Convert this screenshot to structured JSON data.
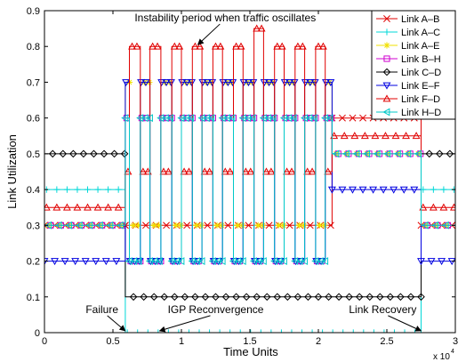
{
  "chart_data": {
    "type": "line",
    "xlabel": "Time Units",
    "ylabel": "Link Utilization",
    "x_multiplier": "x 10",
    "x_multiplier_exp": "4",
    "xlim": [
      0,
      30000
    ],
    "ylim": [
      0,
      0.9
    ],
    "xticks": [
      0,
      5000,
      10000,
      15000,
      20000,
      25000,
      30000
    ],
    "xtick_labels": [
      "0",
      "0.5",
      "1",
      "1.5",
      "2",
      "2.5",
      "3"
    ],
    "yticks": [
      0,
      0.1,
      0.2,
      0.3,
      0.4,
      0.5,
      0.6,
      0.7,
      0.8,
      0.9
    ],
    "ytick_labels": [
      "0",
      "0.1",
      "0.2",
      "0.3",
      "0.4",
      "0.5",
      "0.6",
      "0.7",
      "0.8",
      "0.9"
    ],
    "grid": false,
    "legend_position": "top-right",
    "annotations": [
      {
        "text": "Instability period when traffic oscillates",
        "x": 13200,
        "y": 0.87,
        "arrow_to": [
          11200,
          0.805
        ]
      },
      {
        "text": "Failure",
        "x": 4200,
        "y": 0.055,
        "arrow_to": [
          5900,
          0.005
        ]
      },
      {
        "text": "IGP Reconvergence",
        "x": 12500,
        "y": 0.055,
        "arrow_to": [
          8400,
          0.005
        ]
      },
      {
        "text": "Link Recovery",
        "x": 24700,
        "y": 0.055,
        "arrow_to": [
          27500,
          0.005
        ]
      }
    ],
    "series": [
      {
        "name": "Link A–B",
        "color": "#e00000",
        "marker": "x",
        "x": [
          0,
          5900,
          5900,
          21000,
          21000,
          27500,
          27500,
          30000
        ],
        "y": [
          0.3,
          0.3,
          0.3,
          0.3,
          0.6,
          0.6,
          0.3,
          0.3
        ]
      },
      {
        "name": "Link A–C",
        "color": "#00d8d8",
        "marker": "+",
        "x": [
          0,
          5900,
          5900,
          27500,
          27500,
          30000
        ],
        "y": [
          0.4,
          0.4,
          0,
          0,
          0.4,
          0.4
        ]
      },
      {
        "name": "Link A–E",
        "color": "#f0e000",
        "marker": "*",
        "x": [
          0,
          5900,
          5900,
          6200,
          6200,
          7000,
          7000,
          7700,
          7700,
          8500,
          8500,
          9300,
          9300,
          10000,
          10000,
          10800,
          10800,
          11500,
          11500,
          12300,
          12300,
          13000,
          13000,
          13800,
          13800,
          14500,
          14500,
          15300,
          15300,
          16000,
          16000,
          16800,
          16800,
          17500,
          17500,
          18300,
          18300,
          19000,
          19000,
          19800,
          19800,
          20500,
          20500,
          21000,
          21000,
          27500,
          27500,
          30000
        ],
        "y": [
          0.3,
          0.3,
          0.7,
          0.7,
          0.3,
          0.3,
          0.7,
          0.7,
          0.3,
          0.3,
          0.7,
          0.7,
          0.3,
          0.3,
          0.7,
          0.7,
          0.3,
          0.3,
          0.7,
          0.7,
          0.3,
          0.3,
          0.7,
          0.7,
          0.3,
          0.3,
          0.7,
          0.7,
          0.3,
          0.3,
          0.7,
          0.7,
          0.3,
          0.3,
          0.7,
          0.7,
          0.3,
          0.3,
          0.7,
          0.7,
          0.3,
          0.3,
          0.7,
          0.7,
          0.5,
          0.5,
          0.3,
          0.3
        ]
      },
      {
        "name": "Link B–H",
        "color": "#d000d0",
        "marker": "square",
        "x": [
          0,
          5900,
          5900,
          6200,
          6200,
          7000,
          7000,
          7700,
          7700,
          8500,
          8500,
          9300,
          9300,
          10000,
          10000,
          10800,
          10800,
          11500,
          11500,
          12300,
          12300,
          13000,
          13000,
          13800,
          13800,
          14500,
          14500,
          15300,
          15300,
          16000,
          16000,
          16800,
          16800,
          17500,
          17500,
          18300,
          18300,
          19000,
          19000,
          19800,
          19800,
          20500,
          20500,
          21000,
          21000,
          27500,
          27500,
          30000
        ],
        "y": [
          0.3,
          0.3,
          0.6,
          0.6,
          0.2,
          0.2,
          0.6,
          0.6,
          0.2,
          0.2,
          0.6,
          0.6,
          0.2,
          0.2,
          0.6,
          0.6,
          0.2,
          0.2,
          0.6,
          0.6,
          0.2,
          0.2,
          0.6,
          0.6,
          0.2,
          0.2,
          0.6,
          0.6,
          0.2,
          0.2,
          0.6,
          0.6,
          0.2,
          0.2,
          0.6,
          0.6,
          0.2,
          0.2,
          0.6,
          0.6,
          0.2,
          0.2,
          0.6,
          0.6,
          0.5,
          0.5,
          0.3,
          0.3
        ]
      },
      {
        "name": "Link C–D",
        "color": "#000000",
        "marker": "diamond",
        "x": [
          0,
          5900,
          5900,
          27500,
          27500,
          30000
        ],
        "y": [
          0.5,
          0.5,
          0.1,
          0.1,
          0.5,
          0.5
        ]
      },
      {
        "name": "Link E–F",
        "color": "#0000e0",
        "marker": "triangle-down",
        "x": [
          0,
          5900,
          5900,
          6200,
          6200,
          7000,
          7000,
          7700,
          7700,
          8500,
          8500,
          9300,
          9300,
          10000,
          10000,
          10800,
          10800,
          11500,
          11500,
          12300,
          12300,
          13000,
          13000,
          13800,
          13800,
          14500,
          14500,
          15300,
          15300,
          16000,
          16000,
          16800,
          16800,
          17500,
          17500,
          18300,
          18300,
          19000,
          19000,
          19800,
          19800,
          20500,
          20500,
          21000,
          21000,
          27500,
          27500,
          30000
        ],
        "y": [
          0.2,
          0.2,
          0.7,
          0.7,
          0.2,
          0.2,
          0.7,
          0.7,
          0.2,
          0.2,
          0.7,
          0.7,
          0.2,
          0.2,
          0.7,
          0.7,
          0.2,
          0.2,
          0.7,
          0.7,
          0.2,
          0.2,
          0.7,
          0.7,
          0.2,
          0.2,
          0.7,
          0.7,
          0.2,
          0.2,
          0.7,
          0.7,
          0.2,
          0.2,
          0.7,
          0.7,
          0.2,
          0.2,
          0.7,
          0.7,
          0.2,
          0.2,
          0.7,
          0.7,
          0.4,
          0.4,
          0.2,
          0.2
        ]
      },
      {
        "name": "Link F–D",
        "color": "#e00000",
        "marker": "triangle-up",
        "x": [
          0,
          5900,
          5900,
          6200,
          6200,
          7000,
          7000,
          7700,
          7700,
          8500,
          8500,
          9300,
          9300,
          10000,
          10000,
          10800,
          10800,
          11500,
          11500,
          12300,
          12300,
          13000,
          13000,
          13800,
          13800,
          14500,
          14500,
          15300,
          15300,
          16000,
          16000,
          16800,
          16800,
          17500,
          17500,
          18300,
          18300,
          19000,
          19000,
          19800,
          19800,
          20500,
          20500,
          21000,
          21000,
          27500,
          27500,
          30000
        ],
        "y": [
          0.35,
          0.35,
          0.45,
          0.45,
          0.8,
          0.8,
          0.45,
          0.45,
          0.8,
          0.8,
          0.45,
          0.45,
          0.8,
          0.8,
          0.45,
          0.45,
          0.8,
          0.8,
          0.45,
          0.45,
          0.8,
          0.8,
          0.45,
          0.45,
          0.8,
          0.8,
          0.45,
          0.45,
          0.85,
          0.85,
          0.45,
          0.45,
          0.8,
          0.8,
          0.45,
          0.45,
          0.8,
          0.8,
          0.45,
          0.45,
          0.8,
          0.8,
          0.45,
          0.45,
          0.55,
          0.55,
          0.35,
          0.35
        ]
      },
      {
        "name": "Link H–D",
        "color": "#00c8c8",
        "marker": "triangle-left",
        "x": [
          0,
          5900,
          5900,
          6200,
          6200,
          7000,
          7000,
          7700,
          7700,
          8500,
          8500,
          9300,
          9300,
          10000,
          10000,
          10800,
          10800,
          11500,
          11500,
          12300,
          12300,
          13000,
          13000,
          13800,
          13800,
          14500,
          14500,
          15300,
          15300,
          16000,
          16000,
          16800,
          16800,
          17500,
          17500,
          18300,
          18300,
          19000,
          19000,
          19800,
          19800,
          20500,
          20500,
          21000,
          21000,
          27500,
          27500,
          30000
        ],
        "y": [
          0.3,
          0.3,
          0.6,
          0.6,
          0.2,
          0.2,
          0.6,
          0.6,
          0.2,
          0.2,
          0.6,
          0.6,
          0.2,
          0.2,
          0.6,
          0.6,
          0.2,
          0.2,
          0.6,
          0.6,
          0.2,
          0.2,
          0.6,
          0.6,
          0.2,
          0.2,
          0.6,
          0.6,
          0.2,
          0.2,
          0.6,
          0.6,
          0.2,
          0.2,
          0.6,
          0.6,
          0.2,
          0.2,
          0.6,
          0.6,
          0.2,
          0.2,
          0.6,
          0.6,
          0.5,
          0.5,
          0.3,
          0.3
        ]
      }
    ]
  }
}
